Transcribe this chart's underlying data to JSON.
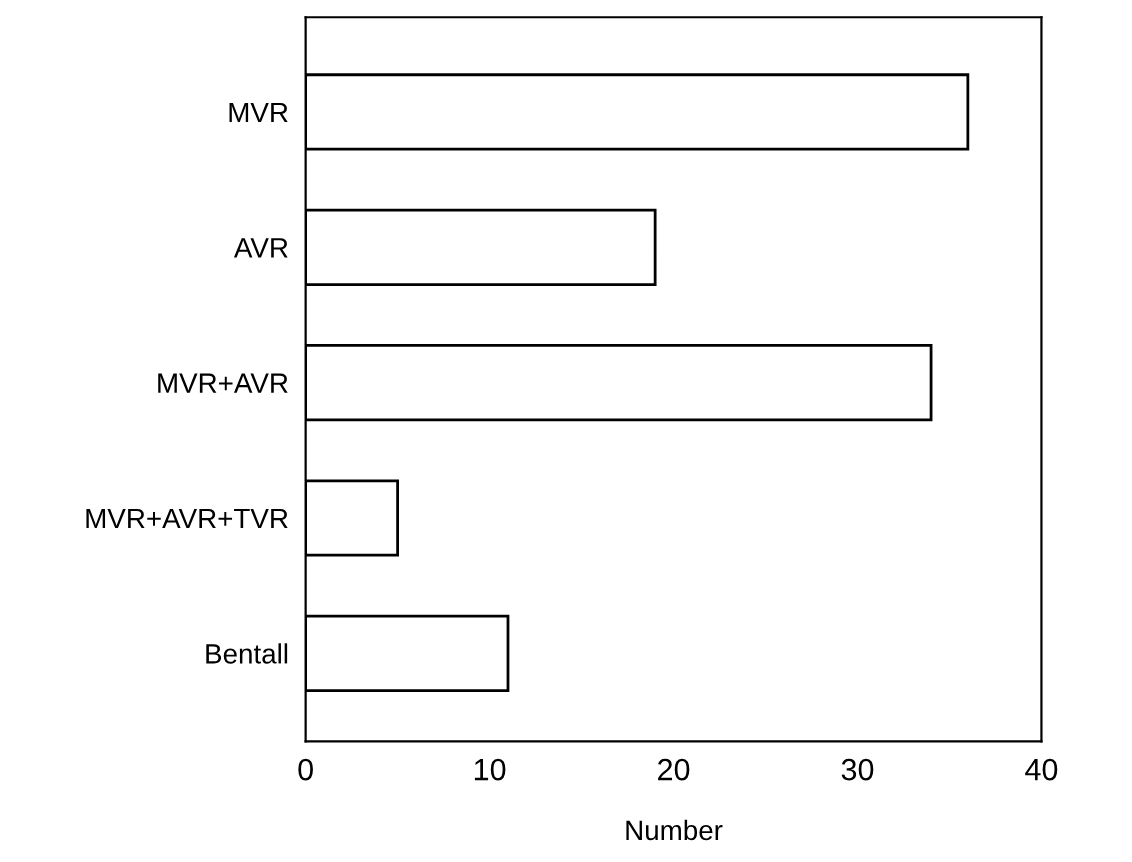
{
  "chart_data": {
    "type": "bar",
    "orientation": "horizontal",
    "xlabel": "Number",
    "categories": [
      "MVR",
      "AVR",
      "MVR+AVR",
      "MVR+AVR+TVR",
      "Bentall"
    ],
    "values": [
      36,
      19,
      34,
      5,
      11
    ],
    "color": "#ffffff",
    "xlim": [
      0,
      40
    ],
    "xticks": [
      0,
      10,
      20,
      30,
      40
    ],
    "grid": false,
    "legend": false
  }
}
